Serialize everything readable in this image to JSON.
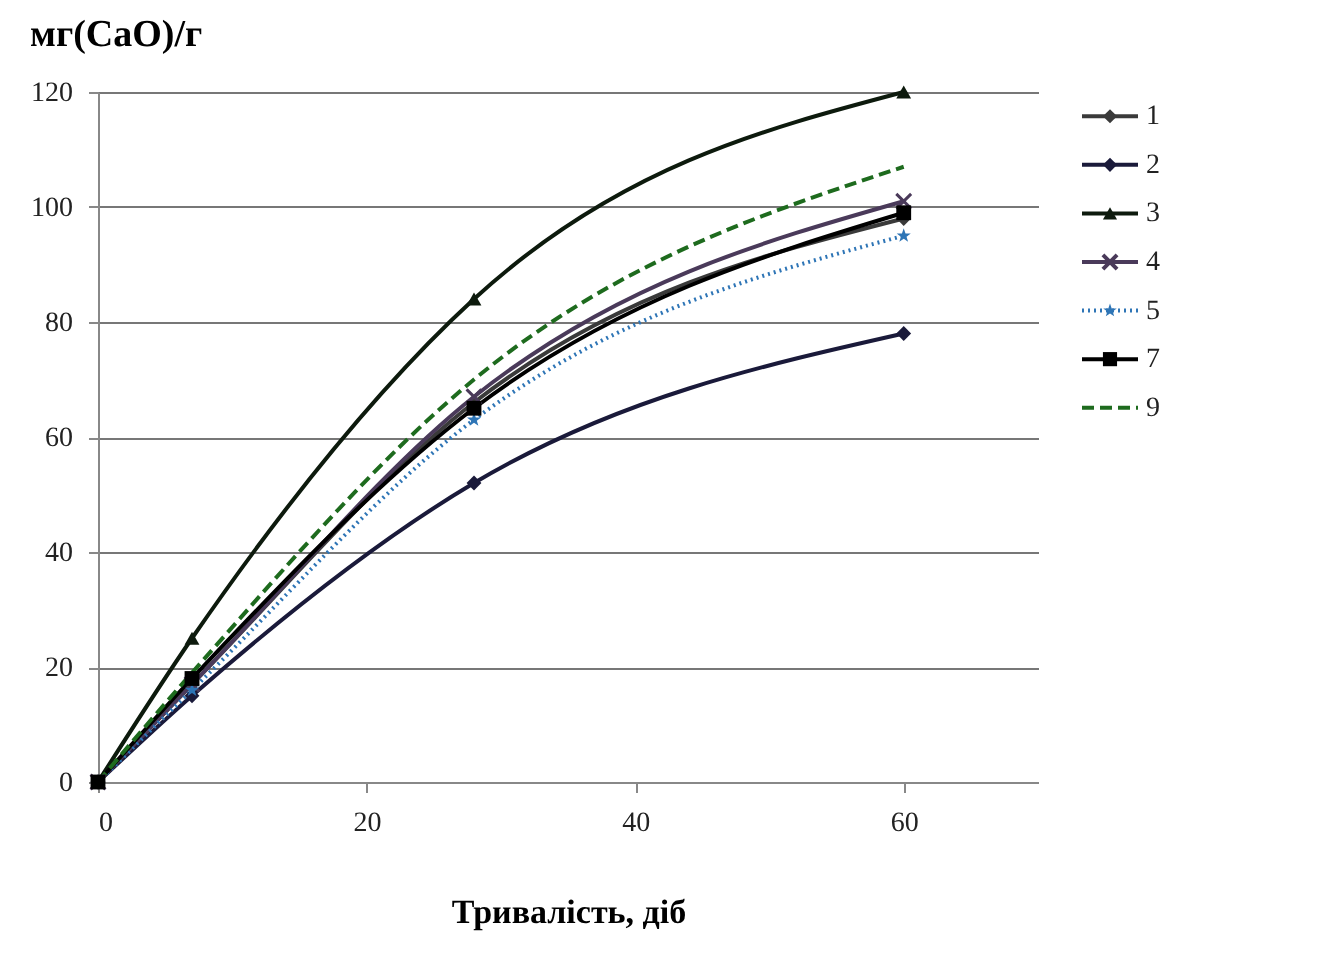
{
  "chart_data": {
    "type": "line",
    "title": "мг(CaO)/г",
    "xlabel": "Тривалість, діб",
    "x": [
      0,
      7,
      28,
      60
    ],
    "xlim": [
      0,
      70
    ],
    "xticks": [
      0,
      20,
      40,
      60
    ],
    "ylim": [
      0,
      120
    ],
    "yticks": [
      0,
      20,
      40,
      60,
      80,
      100,
      120
    ],
    "grid": "y",
    "legend": "right",
    "series": [
      {
        "name": "1",
        "color": "#3a3a3a",
        "marker": "diamond",
        "line_style": "solid",
        "values": [
          0,
          17,
          66,
          98
        ]
      },
      {
        "name": "2",
        "color": "#1a1a3a",
        "marker": "diamond",
        "line_style": "solid",
        "values": [
          0,
          15,
          52,
          78
        ]
      },
      {
        "name": "3",
        "color": "#0d1a0d",
        "marker": "triangle",
        "line_style": "solid",
        "values": [
          0,
          25,
          84,
          120
        ]
      },
      {
        "name": "4",
        "color": "#4a3a5a",
        "marker": "cross",
        "line_style": "solid",
        "values": [
          0,
          17,
          67,
          101
        ]
      },
      {
        "name": "5",
        "color": "#2e75b6",
        "marker": "star",
        "line_style": "dotted",
        "values": [
          0,
          16,
          63,
          95
        ]
      },
      {
        "name": "7",
        "color": "#000000",
        "marker": "square",
        "line_style": "solid",
        "values": [
          0,
          18,
          65,
          99
        ]
      },
      {
        "name": "9",
        "color": "#1e6b1e",
        "marker": "none",
        "line_style": "dashed",
        "values": [
          0,
          19,
          70,
          107
        ]
      }
    ]
  }
}
